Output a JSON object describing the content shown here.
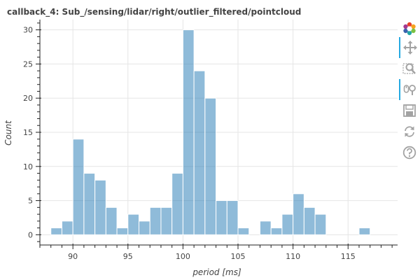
{
  "chart_data": {
    "type": "bar",
    "title": "callback_4: Sub_/sensing/lidar/right/outlier_filtered/pointcloud",
    "xlabel": "period [ms]",
    "ylabel": "Count",
    "xlim": [
      87,
      119.5
    ],
    "ylim": [
      -1.5,
      31.5
    ],
    "x_ticks": [
      90,
      95,
      100,
      105,
      110,
      115
    ],
    "y_ticks": [
      0,
      5,
      10,
      15,
      20,
      25,
      30
    ],
    "bin_width": 1,
    "bins": [
      {
        "left": 88,
        "count": 1
      },
      {
        "left": 89,
        "count": 2
      },
      {
        "left": 90,
        "count": 14
      },
      {
        "left": 91,
        "count": 9
      },
      {
        "left": 92,
        "count": 8
      },
      {
        "left": 93,
        "count": 4
      },
      {
        "left": 94,
        "count": 1
      },
      {
        "left": 95,
        "count": 3
      },
      {
        "left": 96,
        "count": 2
      },
      {
        "left": 97,
        "count": 4
      },
      {
        "left": 98,
        "count": 4
      },
      {
        "left": 99,
        "count": 9
      },
      {
        "left": 100,
        "count": 30
      },
      {
        "left": 101,
        "count": 24
      },
      {
        "left": 102,
        "count": 20
      },
      {
        "left": 103,
        "count": 5
      },
      {
        "left": 104,
        "count": 5
      },
      {
        "left": 105,
        "count": 1
      },
      {
        "left": 107,
        "count": 2
      },
      {
        "left": 108,
        "count": 1
      },
      {
        "left": 109,
        "count": 3
      },
      {
        "left": 110,
        "count": 6
      },
      {
        "left": 111,
        "count": 4
      },
      {
        "left": 112,
        "count": 3
      },
      {
        "left": 116,
        "count": 1
      }
    ],
    "grid": true,
    "bar_color": "#1f77b4",
    "bar_opacity": 0.5
  },
  "toolbar": {
    "tools": [
      {
        "icon": "bokeh-logo-icon",
        "active": false
      },
      {
        "icon": "pan-icon",
        "active": true
      },
      {
        "icon": "box-zoom-icon",
        "active": false
      },
      {
        "icon": "wheel-zoom-icon",
        "active": true
      },
      {
        "icon": "save-icon",
        "active": false
      },
      {
        "icon": "reset-icon",
        "active": false
      },
      {
        "icon": "help-icon",
        "active": false
      }
    ]
  }
}
